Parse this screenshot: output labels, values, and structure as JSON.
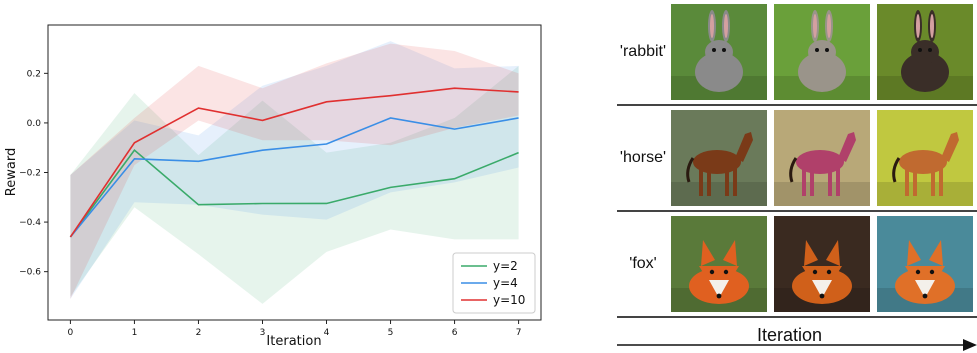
{
  "chart_data": {
    "type": "line",
    "xlabel": "Iteration",
    "ylabel": "Reward",
    "x": [
      0,
      1,
      2,
      3,
      4,
      5,
      6,
      7
    ],
    "xlim": [
      -0.35,
      7.35
    ],
    "ylim": [
      -0.795,
      0.395
    ],
    "xticks": [
      0,
      1,
      2,
      3,
      4,
      5,
      6,
      7
    ],
    "yticks": [
      -0.6,
      -0.4,
      -0.2,
      0.0,
      0.2
    ],
    "ytick_labels": [
      "−0.6",
      "−0.4",
      "−0.2",
      "0.0",
      "0.2"
    ],
    "legend_position": "lower-right",
    "series": [
      {
        "name": "y=2",
        "color": "#3aaa6a",
        "values": [
          -0.46,
          -0.11,
          -0.33,
          -0.325,
          -0.325,
          -0.26,
          -0.225,
          -0.12
        ],
        "lower": [
          -0.7,
          -0.34,
          -0.53,
          -0.73,
          -0.52,
          -0.43,
          -0.47,
          -0.47
        ],
        "upper": [
          -0.21,
          0.12,
          -0.13,
          0.09,
          -0.12,
          -0.08,
          0.02,
          0.23
        ]
      },
      {
        "name": "y=4",
        "color": "#3a8ee6",
        "values": [
          -0.46,
          -0.145,
          -0.155,
          -0.11,
          -0.085,
          0.02,
          -0.025,
          0.02
        ],
        "lower": [
          -0.71,
          -0.32,
          -0.33,
          -0.37,
          -0.39,
          -0.28,
          -0.24,
          -0.18
        ],
        "upper": [
          -0.21,
          0.01,
          -0.05,
          0.15,
          0.23,
          0.33,
          0.22,
          0.23
        ]
      },
      {
        "name": "y=10",
        "color": "#e03030",
        "values": [
          -0.46,
          -0.08,
          0.06,
          0.01,
          0.085,
          0.11,
          0.14,
          0.125
        ],
        "lower": [
          -0.71,
          -0.17,
          0.01,
          -0.07,
          -0.07,
          -0.09,
          -0.02,
          0.03
        ],
        "upper": [
          -0.21,
          0.02,
          0.23,
          0.14,
          0.24,
          0.32,
          0.29,
          0.2
        ]
      }
    ]
  },
  "image_grid": {
    "xlabel": "Iteration",
    "rows": [
      {
        "label": "'rabbit'",
        "subject": "rabbit",
        "backgrounds": [
          "#5a8a3a",
          "#6aa03a",
          "#6a8a2a"
        ],
        "fur": [
          "#8a8a8a",
          "#9a948a",
          "#3a2e28"
        ]
      },
      {
        "label": "'horse'",
        "subject": "horse",
        "backgrounds": [
          "#6a7a5a",
          "#b8a878",
          "#c0c840"
        ],
        "fur": [
          "#7a3a18",
          "#b0406a",
          "#c06a30"
        ]
      },
      {
        "label": "'fox'",
        "subject": "fox",
        "backgrounds": [
          "#5a7a3a",
          "#3a2a20",
          "#4a8a9a"
        ],
        "fur": [
          "#e06020",
          "#d0601a",
          "#e07028"
        ]
      }
    ]
  }
}
